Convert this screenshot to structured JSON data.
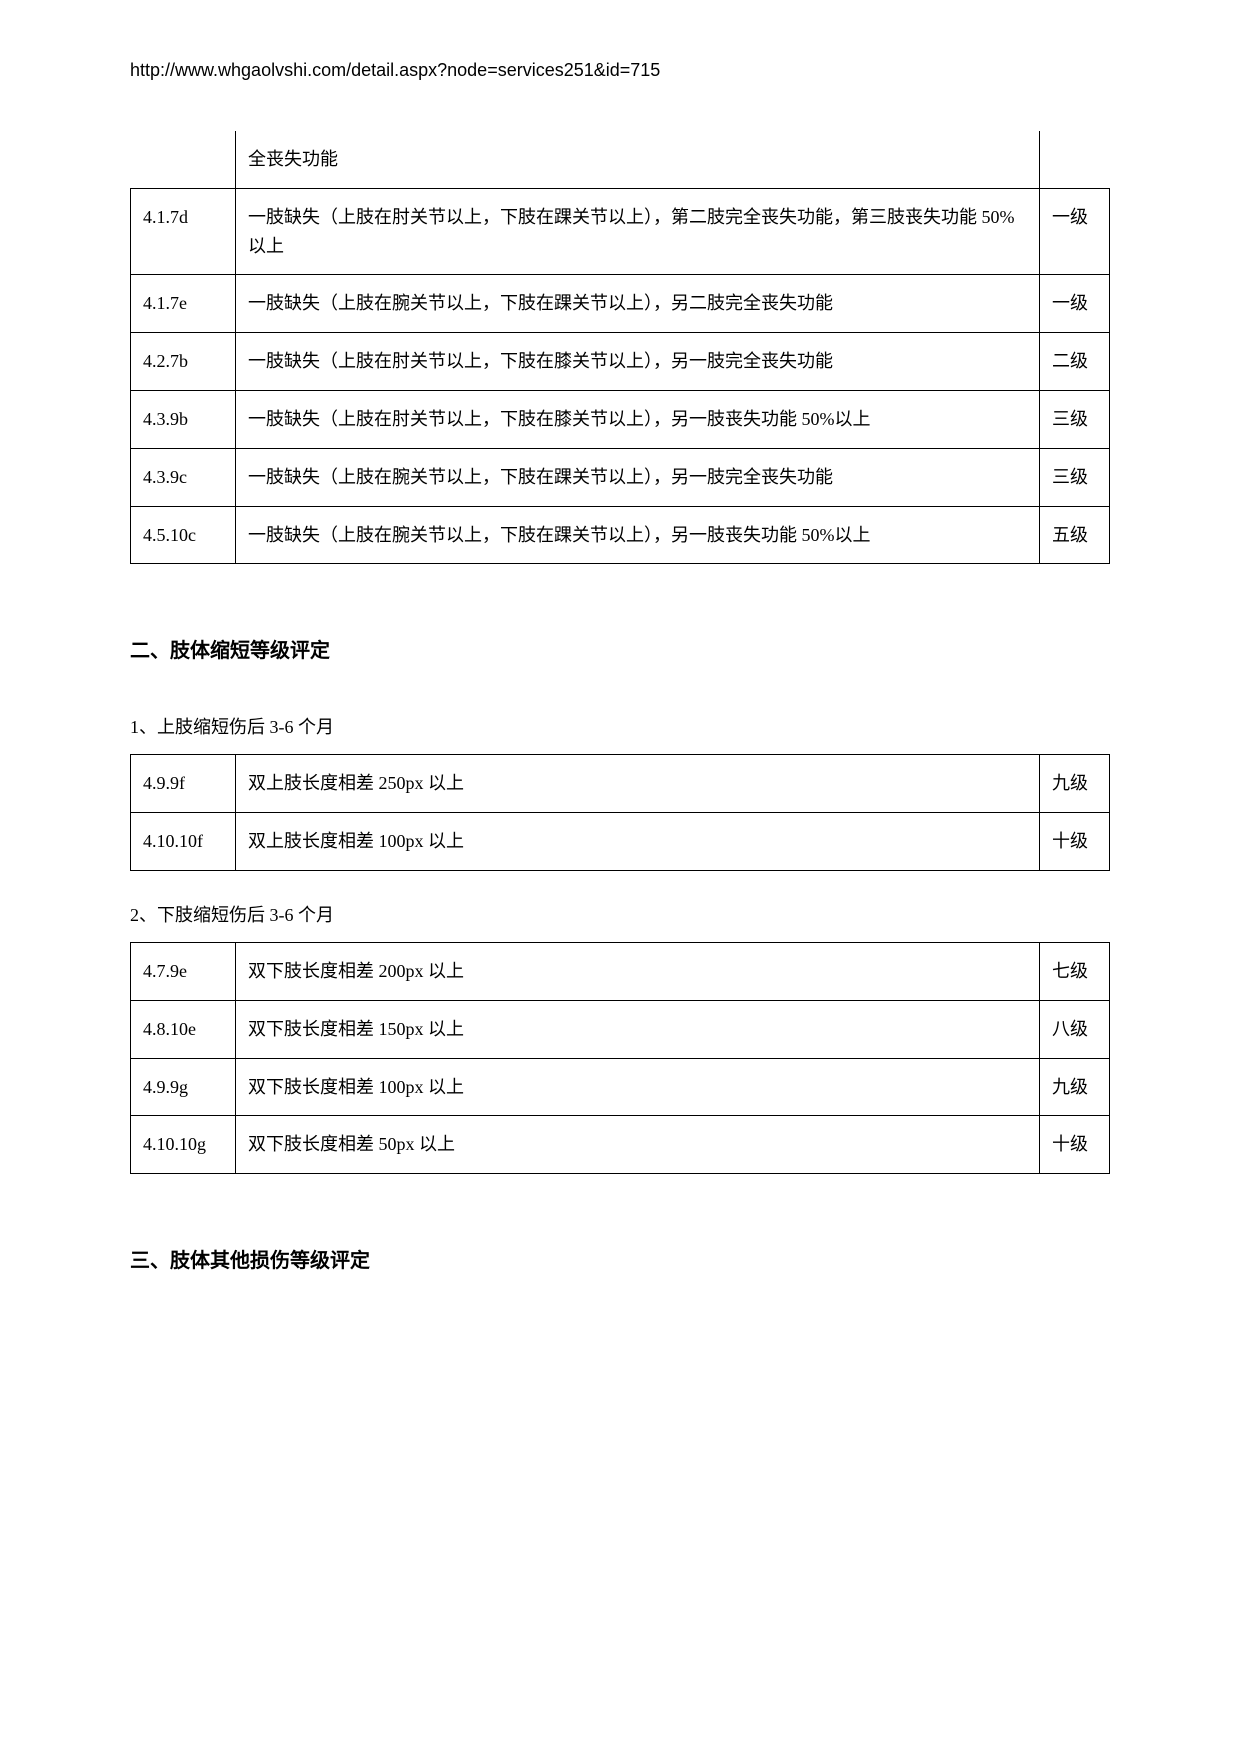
{
  "url": "http://www.whgaolvshi.com/detail.aspx?node=services251&id=715",
  "table1": {
    "rows": [
      {
        "code": "",
        "desc": "全丧失功能",
        "level": ""
      },
      {
        "code": "4.1.7d",
        "desc": "一肢缺失（上肢在肘关节以上，下肢在踝关节以上），第二肢完全丧失功能，第三肢丧失功能 50%以上",
        "level": "一级"
      },
      {
        "code": "4.1.7e",
        "desc": "一肢缺失（上肢在腕关节以上，下肢在踝关节以上），另二肢完全丧失功能",
        "level": "一级"
      },
      {
        "code": "4.2.7b",
        "desc": "一肢缺失（上肢在肘关节以上，下肢在膝关节以上），另一肢完全丧失功能",
        "level": "二级"
      },
      {
        "code": "4.3.9b",
        "desc": "一肢缺失（上肢在肘关节以上，下肢在膝关节以上），另一肢丧失功能 50%以上",
        "level": "三级"
      },
      {
        "code": "4.3.9c",
        "desc": "一肢缺失（上肢在腕关节以上，下肢在踝关节以上），另一肢完全丧失功能",
        "level": "三级"
      },
      {
        "code": "4.5.10c",
        "desc": "一肢缺失（上肢在腕关节以上，下肢在踝关节以上），另一肢丧失功能 50%以上",
        "level": "五级"
      }
    ]
  },
  "section2": {
    "heading": "二、肢体缩短等级评定",
    "sub1": "1、上肢缩短伤后 3-6 个月",
    "table_a": {
      "rows": [
        {
          "code": "4.9.9f",
          "desc": "双上肢长度相差 250px 以上",
          "level": "九级"
        },
        {
          "code": "4.10.10f",
          "desc": "双上肢长度相差 100px 以上",
          "level": "十级"
        }
      ]
    },
    "sub2": "2、下肢缩短伤后 3-6 个月",
    "table_b": {
      "rows": [
        {
          "code": "4.7.9e",
          "desc": "双下肢长度相差 200px 以上",
          "level": "七级"
        },
        {
          "code": "4.8.10e",
          "desc": "双下肢长度相差 150px 以上",
          "level": "八级"
        },
        {
          "code": "4.9.9g",
          "desc": "双下肢长度相差 100px 以上",
          "level": "九级"
        },
        {
          "code": "4.10.10g",
          "desc": "双下肢长度相差 50px 以上",
          "level": "十级"
        }
      ]
    }
  },
  "section3": {
    "heading": "三、肢体其他损伤等级评定"
  }
}
